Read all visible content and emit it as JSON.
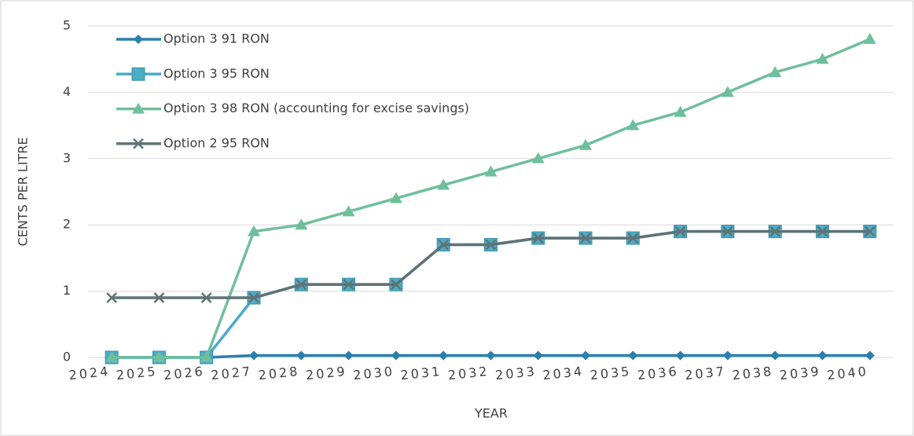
{
  "chart_data": {
    "type": "line",
    "categories": [
      "2024",
      "2025",
      "2026",
      "2027",
      "2028",
      "2029",
      "2030",
      "2031",
      "2032",
      "2033",
      "2034",
      "2035",
      "2036",
      "2037",
      "2038",
      "2039",
      "2040"
    ],
    "series": [
      {
        "name": "Option 3 91 RON",
        "color": "#2b7fae",
        "marker": "diamond",
        "values": [
          0,
          0,
          0,
          0.03,
          0.03,
          0.03,
          0.03,
          0.03,
          0.03,
          0.03,
          0.03,
          0.03,
          0.03,
          0.03,
          0.03,
          0.03,
          0.03
        ]
      },
      {
        "name": "Option 3 95 RON",
        "color": "#4bacc6",
        "marker": "square",
        "values": [
          0,
          0,
          0,
          0.9,
          1.1,
          1.1,
          1.1,
          1.7,
          1.7,
          1.8,
          1.8,
          1.8,
          1.9,
          1.9,
          1.9,
          1.9,
          1.9
        ]
      },
      {
        "name": "Option 3 98 RON (accounting for excise savings)",
        "color": "#6fbf9c",
        "marker": "triangle",
        "values": [
          0,
          0,
          0,
          1.9,
          2.0,
          2.2,
          2.4,
          2.6,
          2.8,
          3.0,
          3.2,
          3.5,
          3.7,
          4.0,
          4.3,
          4.5,
          4.8
        ]
      },
      {
        "name": "Option 2 95 RON",
        "color": "#5f7275",
        "marker": "x",
        "values": [
          0.9,
          0.9,
          0.9,
          0.9,
          1.1,
          1.1,
          1.1,
          1.7,
          1.7,
          1.8,
          1.8,
          1.8,
          1.9,
          1.9,
          1.9,
          1.9,
          1.9
        ]
      }
    ],
    "ylim": [
      0,
      5
    ],
    "yticks": [
      0,
      1,
      2,
      3,
      4,
      5
    ],
    "ylabel": "CENTS PER LITRE",
    "xlabel": "YEAR",
    "grid": true,
    "legend": "upper left"
  }
}
